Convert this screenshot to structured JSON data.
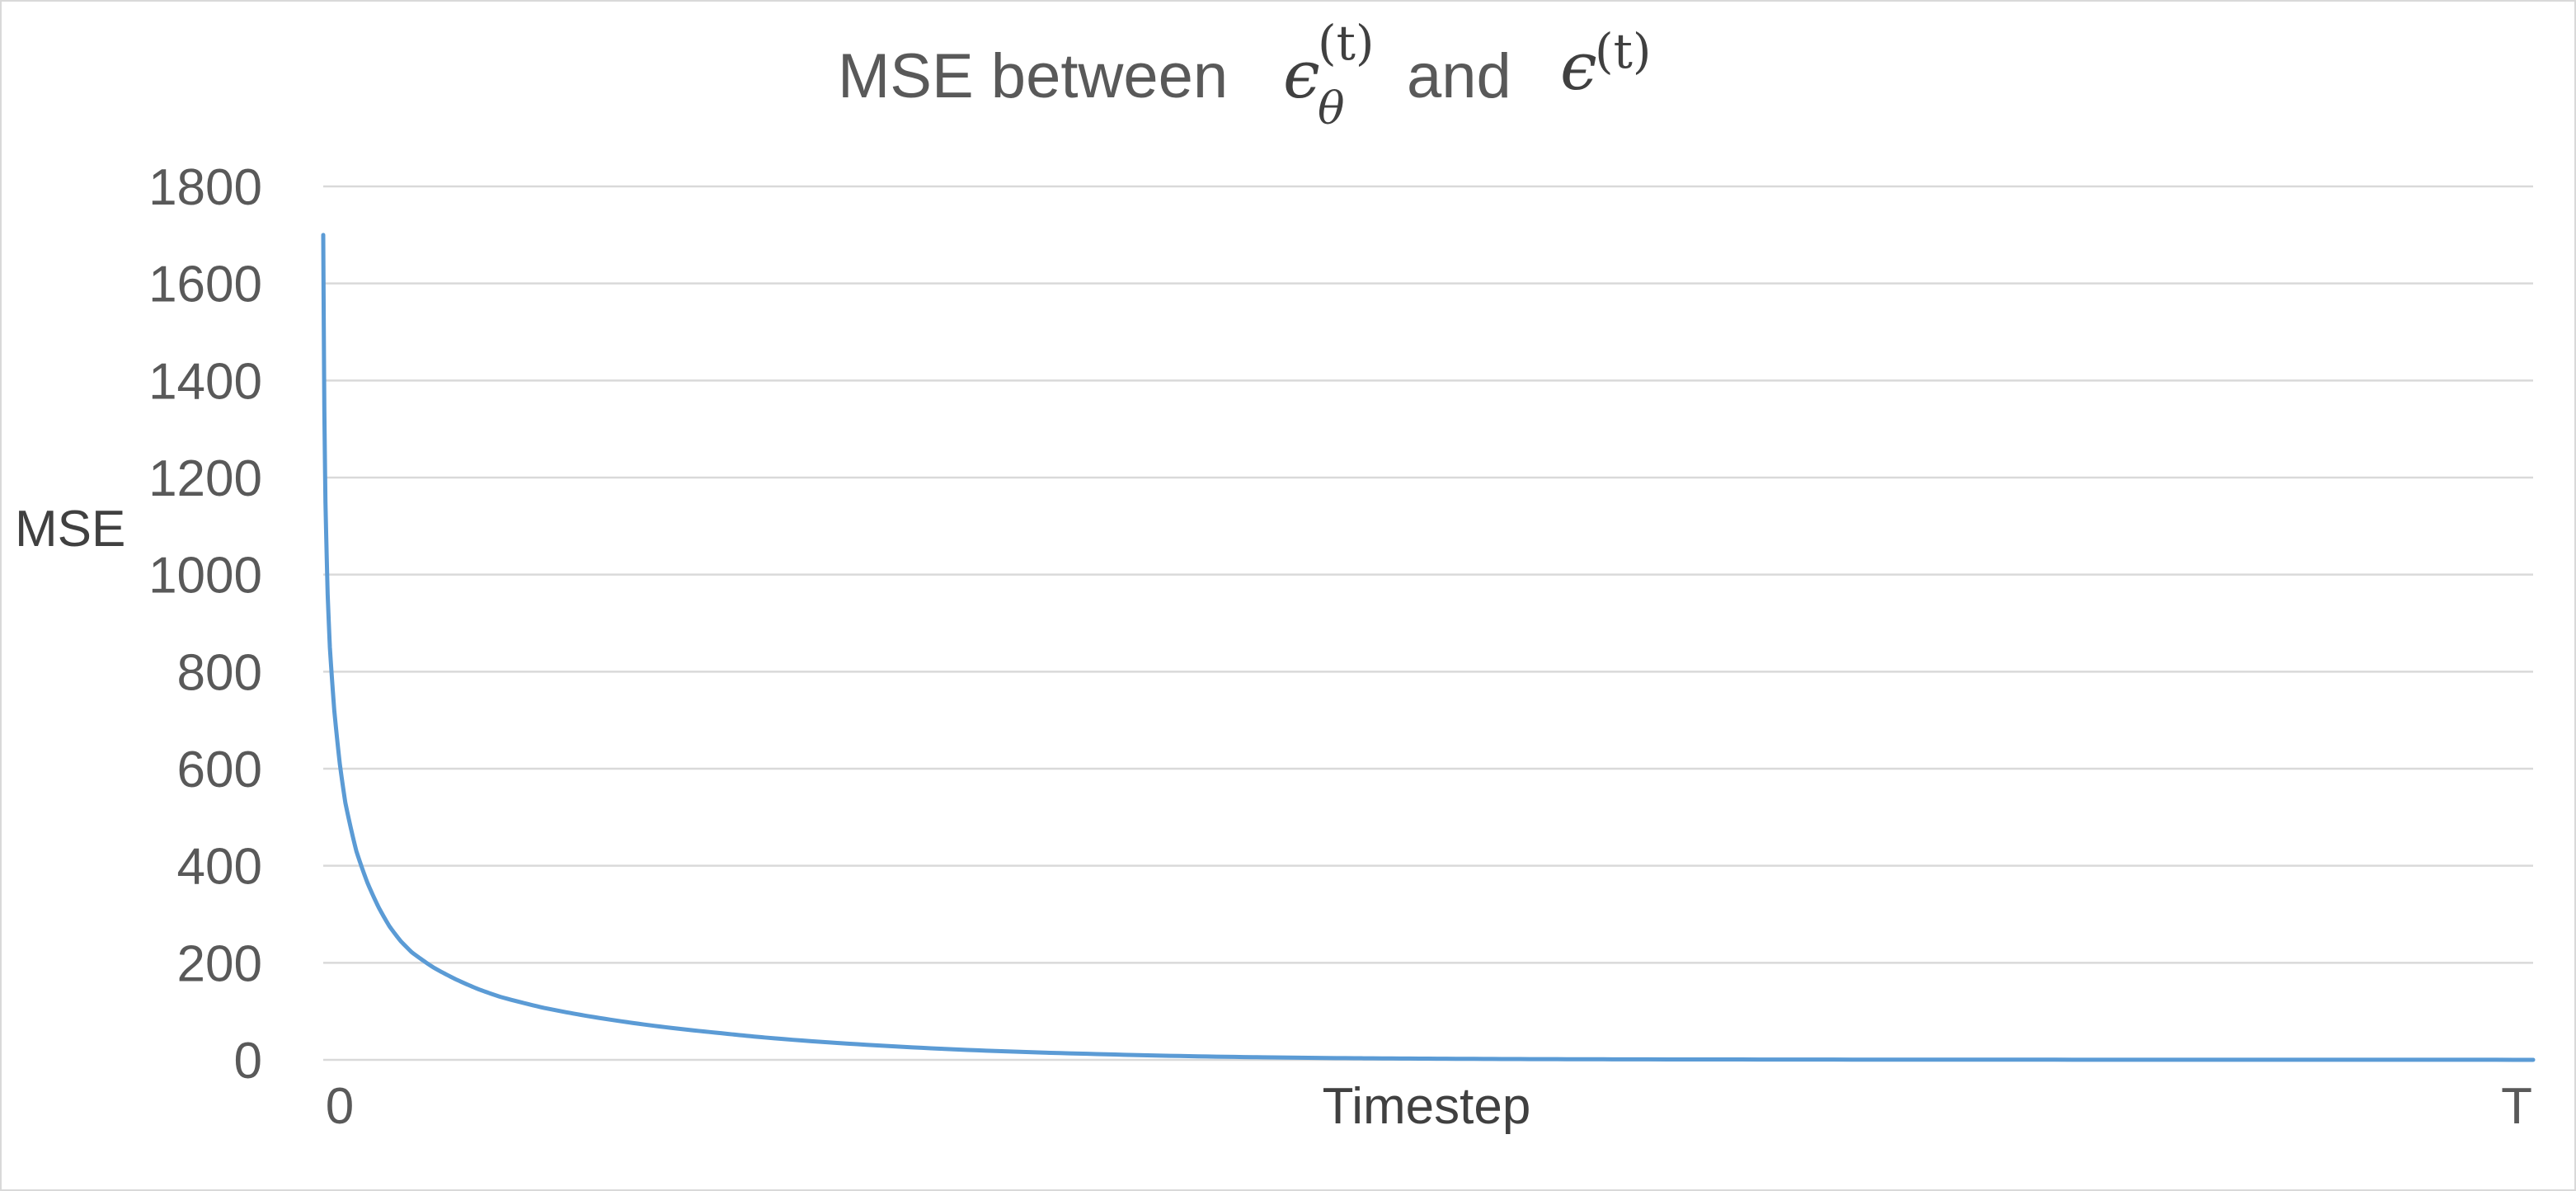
{
  "chart_data": {
    "type": "line",
    "title": {
      "prefix": "MSE between",
      "term1_base": "ϵ",
      "term1_sub": "θ",
      "term1_sup": "(t)",
      "conjunction": "and",
      "term2_base": "ϵ",
      "term2_sup": "(t)"
    },
    "xlabel": "Timestep",
    "ylabel": "MSE",
    "x_tick_labels": [
      "0",
      "T"
    ],
    "xlim": [
      0,
      1
    ],
    "ylim": [
      0,
      1800
    ],
    "y_ticks": [
      0,
      200,
      400,
      600,
      800,
      1000,
      1200,
      1400,
      1600,
      1800
    ],
    "grid": true,
    "line_color": "#5b9bd5",
    "series": [
      {
        "x": [
          0,
          0.0005,
          0.001,
          0.002,
          0.003,
          0.005,
          0.0075,
          0.01,
          0.015,
          0.02,
          0.025,
          0.03,
          0.035,
          0.04,
          0.05,
          0.06,
          0.07,
          0.08,
          0.1,
          0.12,
          0.15,
          0.18,
          0.2,
          0.25,
          0.3,
          0.35,
          0.4,
          0.45,
          0.5,
          0.55,
          0.6,
          0.7,
          0.8,
          0.9,
          1.0
        ],
        "values": [
          1700,
          1340,
          1150,
          960,
          850,
          720,
          610,
          530,
          430,
          365,
          315,
          275,
          245,
          222,
          190,
          166,
          146,
          130,
          107,
          90,
          70,
          55,
          46,
          30,
          19,
          12,
          7,
          4,
          2.5,
          1.5,
          1,
          0.5,
          0.3,
          0.2,
          0.1
        ]
      }
    ]
  }
}
